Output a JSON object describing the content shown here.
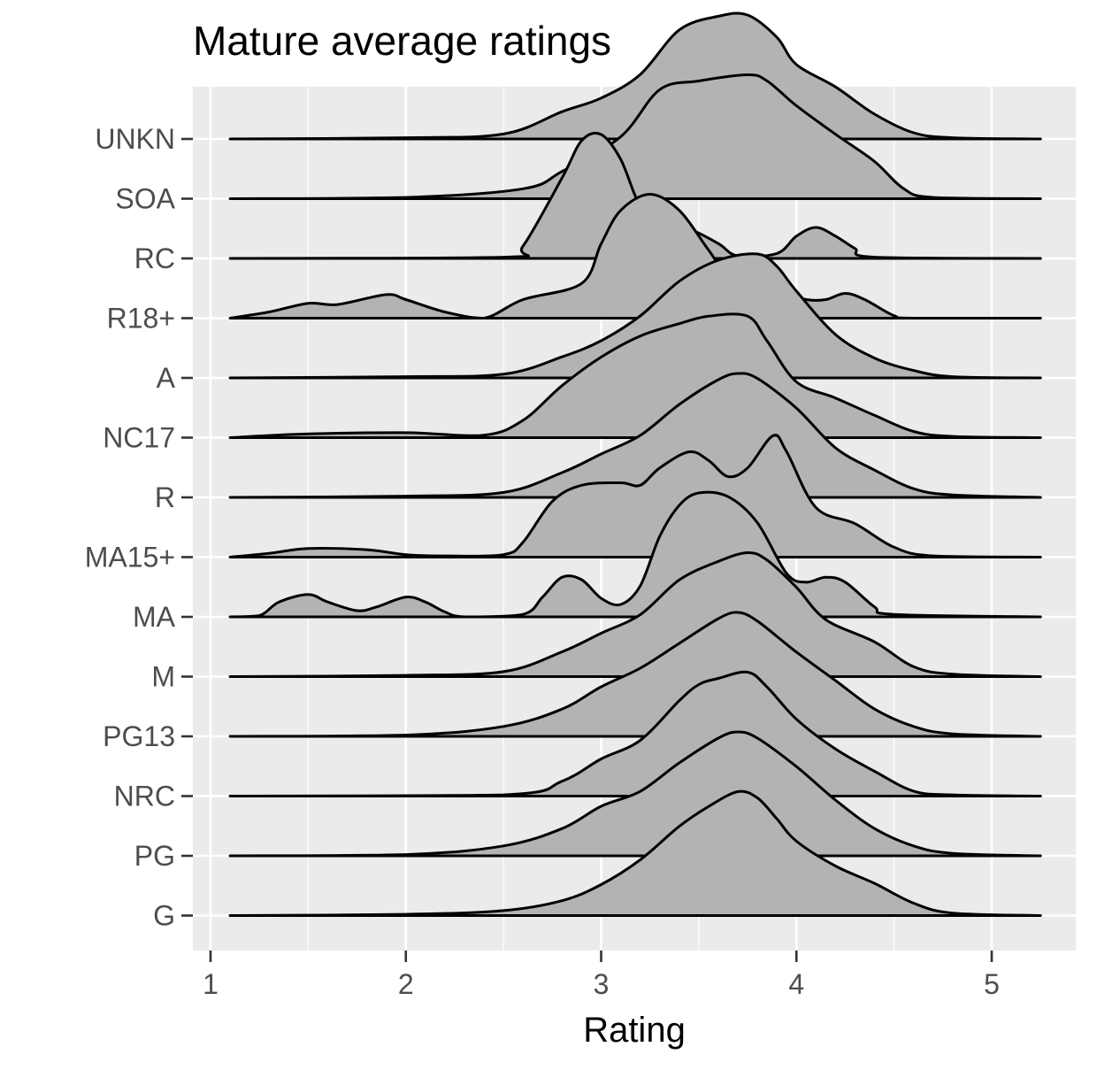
{
  "chart_data": {
    "type": "ridgeline",
    "title": "Mature average ratings",
    "xlabel": "Rating",
    "ylabel": "",
    "xlim": [
      0.9,
      5.45
    ],
    "x_ticks": [
      1,
      2,
      3,
      4,
      5
    ],
    "grid": true,
    "fill_color": "#b3b3b3",
    "panel_color": "#ebebeb",
    "categories": [
      "G",
      "PG",
      "NRC",
      "PG13",
      "M",
      "MA",
      "MA15+",
      "R",
      "NC17",
      "A",
      "R18+",
      "RC",
      "SOA",
      "UNKN"
    ],
    "series": [
      {
        "category": "G",
        "points": [
          [
            1.1,
            0
          ],
          [
            2.0,
            0.01
          ],
          [
            2.5,
            0.04
          ],
          [
            2.8,
            0.12
          ],
          [
            3.0,
            0.25
          ],
          [
            3.2,
            0.45
          ],
          [
            3.4,
            0.72
          ],
          [
            3.55,
            0.88
          ],
          [
            3.7,
            1.0
          ],
          [
            3.8,
            0.95
          ],
          [
            3.9,
            0.78
          ],
          [
            4.0,
            0.6
          ],
          [
            4.2,
            0.4
          ],
          [
            4.4,
            0.26
          ],
          [
            4.6,
            0.1
          ],
          [
            4.8,
            0.02
          ],
          [
            5.25,
            0
          ]
        ]
      },
      {
        "category": "PG",
        "points": [
          [
            1.1,
            0
          ],
          [
            2.0,
            0.01
          ],
          [
            2.5,
            0.08
          ],
          [
            2.8,
            0.22
          ],
          [
            3.0,
            0.4
          ],
          [
            3.2,
            0.52
          ],
          [
            3.4,
            0.75
          ],
          [
            3.6,
            0.95
          ],
          [
            3.7,
            1.0
          ],
          [
            3.8,
            0.95
          ],
          [
            4.0,
            0.72
          ],
          [
            4.2,
            0.45
          ],
          [
            4.4,
            0.22
          ],
          [
            4.6,
            0.08
          ],
          [
            4.8,
            0.02
          ],
          [
            5.25,
            0
          ]
        ]
      },
      {
        "category": "NRC",
        "points": [
          [
            1.1,
            0
          ],
          [
            2.5,
            0.01
          ],
          [
            2.8,
            0.12
          ],
          [
            3.0,
            0.3
          ],
          [
            3.2,
            0.45
          ],
          [
            3.4,
            0.77
          ],
          [
            3.5,
            0.9
          ],
          [
            3.6,
            0.95
          ],
          [
            3.75,
            1.0
          ],
          [
            3.85,
            0.88
          ],
          [
            4.0,
            0.62
          ],
          [
            4.2,
            0.38
          ],
          [
            4.4,
            0.2
          ],
          [
            4.6,
            0.04
          ],
          [
            4.8,
            0.01
          ],
          [
            5.25,
            0
          ]
        ]
      },
      {
        "category": "PG13",
        "points": [
          [
            1.1,
            0
          ],
          [
            2.0,
            0.01
          ],
          [
            2.5,
            0.08
          ],
          [
            2.8,
            0.22
          ],
          [
            3.0,
            0.4
          ],
          [
            3.2,
            0.55
          ],
          [
            3.4,
            0.75
          ],
          [
            3.6,
            0.95
          ],
          [
            3.7,
            1.0
          ],
          [
            3.8,
            0.93
          ],
          [
            4.0,
            0.68
          ],
          [
            4.2,
            0.45
          ],
          [
            4.4,
            0.22
          ],
          [
            4.6,
            0.08
          ],
          [
            4.8,
            0.02
          ],
          [
            5.25,
            0
          ]
        ]
      },
      {
        "category": "M",
        "points": [
          [
            1.1,
            0
          ],
          [
            2.0,
            0.01
          ],
          [
            2.5,
            0.04
          ],
          [
            2.8,
            0.2
          ],
          [
            3.0,
            0.35
          ],
          [
            3.2,
            0.5
          ],
          [
            3.4,
            0.78
          ],
          [
            3.6,
            0.93
          ],
          [
            3.75,
            1.0
          ],
          [
            3.85,
            0.94
          ],
          [
            4.0,
            0.72
          ],
          [
            4.15,
            0.46
          ],
          [
            4.4,
            0.28
          ],
          [
            4.6,
            0.08
          ],
          [
            4.8,
            0.02
          ],
          [
            5.25,
            0
          ]
        ]
      },
      {
        "category": "MA",
        "points": [
          [
            1.1,
            0
          ],
          [
            1.25,
            0.01
          ],
          [
            1.35,
            0.12
          ],
          [
            1.5,
            0.18
          ],
          [
            1.6,
            0.12
          ],
          [
            1.75,
            0.05
          ],
          [
            1.85,
            0.08
          ],
          [
            2.0,
            0.16
          ],
          [
            2.1,
            0.12
          ],
          [
            2.2,
            0.04
          ],
          [
            2.3,
            0.0
          ],
          [
            2.6,
            0.02
          ],
          [
            2.7,
            0.16
          ],
          [
            2.8,
            0.32
          ],
          [
            2.9,
            0.3
          ],
          [
            3.0,
            0.15
          ],
          [
            3.1,
            0.1
          ],
          [
            3.2,
            0.25
          ],
          [
            3.3,
            0.65
          ],
          [
            3.4,
            0.9
          ],
          [
            3.5,
            1.0
          ],
          [
            3.65,
            0.97
          ],
          [
            3.8,
            0.76
          ],
          [
            3.95,
            0.35
          ],
          [
            4.05,
            0.28
          ],
          [
            4.15,
            0.32
          ],
          [
            4.25,
            0.28
          ],
          [
            4.4,
            0.08
          ],
          [
            4.5,
            0.02
          ],
          [
            5.25,
            0
          ]
        ]
      },
      {
        "category": "MA15+",
        "points": [
          [
            1.1,
            0
          ],
          [
            1.3,
            0.03
          ],
          [
            1.5,
            0.07
          ],
          [
            1.8,
            0.06
          ],
          [
            2.0,
            0.02
          ],
          [
            2.2,
            0.01
          ],
          [
            2.5,
            0.02
          ],
          [
            2.6,
            0.12
          ],
          [
            2.75,
            0.45
          ],
          [
            2.9,
            0.58
          ],
          [
            3.1,
            0.6
          ],
          [
            3.2,
            0.58
          ],
          [
            3.3,
            0.72
          ],
          [
            3.45,
            0.85
          ],
          [
            3.55,
            0.78
          ],
          [
            3.65,
            0.65
          ],
          [
            3.75,
            0.72
          ],
          [
            3.88,
            0.98
          ],
          [
            3.95,
            0.85
          ],
          [
            4.1,
            0.4
          ],
          [
            4.3,
            0.27
          ],
          [
            4.5,
            0.08
          ],
          [
            4.7,
            0.01
          ],
          [
            5.25,
            0
          ]
        ]
      },
      {
        "category": "R",
        "points": [
          [
            1.1,
            0
          ],
          [
            2.0,
            0.01
          ],
          [
            2.5,
            0.04
          ],
          [
            2.8,
            0.2
          ],
          [
            3.0,
            0.35
          ],
          [
            3.2,
            0.5
          ],
          [
            3.4,
            0.75
          ],
          [
            3.6,
            0.95
          ],
          [
            3.7,
            1.0
          ],
          [
            3.8,
            0.96
          ],
          [
            4.0,
            0.72
          ],
          [
            4.2,
            0.4
          ],
          [
            4.4,
            0.22
          ],
          [
            4.6,
            0.07
          ],
          [
            4.8,
            0.02
          ],
          [
            5.25,
            0
          ]
        ]
      },
      {
        "category": "NC17",
        "points": [
          [
            1.1,
            0
          ],
          [
            1.5,
            0.03
          ],
          [
            2.0,
            0.04
          ],
          [
            2.4,
            0.02
          ],
          [
            2.6,
            0.14
          ],
          [
            2.8,
            0.42
          ],
          [
            3.0,
            0.65
          ],
          [
            3.2,
            0.82
          ],
          [
            3.4,
            0.92
          ],
          [
            3.55,
            0.98
          ],
          [
            3.75,
            0.98
          ],
          [
            3.85,
            0.78
          ],
          [
            4.0,
            0.45
          ],
          [
            4.2,
            0.32
          ],
          [
            4.4,
            0.18
          ],
          [
            4.6,
            0.05
          ],
          [
            4.8,
            0.01
          ],
          [
            5.25,
            0
          ]
        ]
      },
      {
        "category": "A",
        "points": [
          [
            1.1,
            0
          ],
          [
            2.0,
            0.01
          ],
          [
            2.5,
            0.03
          ],
          [
            2.8,
            0.17
          ],
          [
            3.0,
            0.3
          ],
          [
            3.2,
            0.5
          ],
          [
            3.4,
            0.78
          ],
          [
            3.6,
            0.95
          ],
          [
            3.8,
            1.0
          ],
          [
            3.9,
            0.9
          ],
          [
            4.0,
            0.7
          ],
          [
            4.2,
            0.35
          ],
          [
            4.4,
            0.16
          ],
          [
            4.6,
            0.06
          ],
          [
            4.8,
            0.01
          ],
          [
            5.25,
            0
          ]
        ]
      },
      {
        "category": "R18+",
        "points": [
          [
            1.1,
            0
          ],
          [
            1.3,
            0.05
          ],
          [
            1.5,
            0.12
          ],
          [
            1.65,
            0.11
          ],
          [
            1.9,
            0.19
          ],
          [
            2.0,
            0.15
          ],
          [
            2.2,
            0.05
          ],
          [
            2.4,
            0.0
          ],
          [
            2.6,
            0.15
          ],
          [
            2.9,
            0.28
          ],
          [
            3.0,
            0.6
          ],
          [
            3.1,
            0.87
          ],
          [
            3.25,
            1.0
          ],
          [
            3.4,
            0.87
          ],
          [
            3.55,
            0.55
          ],
          [
            3.65,
            0.35
          ],
          [
            3.8,
            0.3
          ],
          [
            3.95,
            0.2
          ],
          [
            4.05,
            0.15
          ],
          [
            4.15,
            0.15
          ],
          [
            4.25,
            0.2
          ],
          [
            4.35,
            0.15
          ],
          [
            4.5,
            0.02
          ],
          [
            4.6,
            0.0
          ],
          [
            5.25,
            0
          ]
        ]
      },
      {
        "category": "RC",
        "points": [
          [
            1.1,
            0
          ],
          [
            2.5,
            0.01
          ],
          [
            2.6,
            0.1
          ],
          [
            2.8,
            0.65
          ],
          [
            2.9,
            0.95
          ],
          [
            3.0,
            1.0
          ],
          [
            3.1,
            0.8
          ],
          [
            3.2,
            0.42
          ],
          [
            3.3,
            0.3
          ],
          [
            3.45,
            0.24
          ],
          [
            3.6,
            0.12
          ],
          [
            3.7,
            0.02
          ],
          [
            3.9,
            0.04
          ],
          [
            4.0,
            0.18
          ],
          [
            4.1,
            0.25
          ],
          [
            4.2,
            0.18
          ],
          [
            4.3,
            0.08
          ],
          [
            4.4,
            0.01
          ],
          [
            5.25,
            0
          ]
        ]
      },
      {
        "category": "SOA",
        "points": [
          [
            1.1,
            0
          ],
          [
            2.0,
            0.01
          ],
          [
            2.6,
            0.08
          ],
          [
            2.8,
            0.22
          ],
          [
            3.1,
            0.5
          ],
          [
            3.3,
            0.88
          ],
          [
            3.5,
            0.95
          ],
          [
            3.75,
            1.0
          ],
          [
            3.85,
            0.95
          ],
          [
            4.0,
            0.75
          ],
          [
            4.2,
            0.52
          ],
          [
            4.4,
            0.3
          ],
          [
            4.55,
            0.08
          ],
          [
            4.7,
            0.01
          ],
          [
            5.25,
            0
          ]
        ]
      },
      {
        "category": "UNKN",
        "points": [
          [
            1.1,
            0
          ],
          [
            2.0,
            0.01
          ],
          [
            2.5,
            0.04
          ],
          [
            2.8,
            0.22
          ],
          [
            3.0,
            0.33
          ],
          [
            3.2,
            0.52
          ],
          [
            3.4,
            0.88
          ],
          [
            3.6,
            0.99
          ],
          [
            3.75,
            1.0
          ],
          [
            3.9,
            0.82
          ],
          [
            4.0,
            0.6
          ],
          [
            4.2,
            0.42
          ],
          [
            4.4,
            0.2
          ],
          [
            4.6,
            0.05
          ],
          [
            4.8,
            0.01
          ],
          [
            5.25,
            0
          ]
        ]
      }
    ]
  }
}
